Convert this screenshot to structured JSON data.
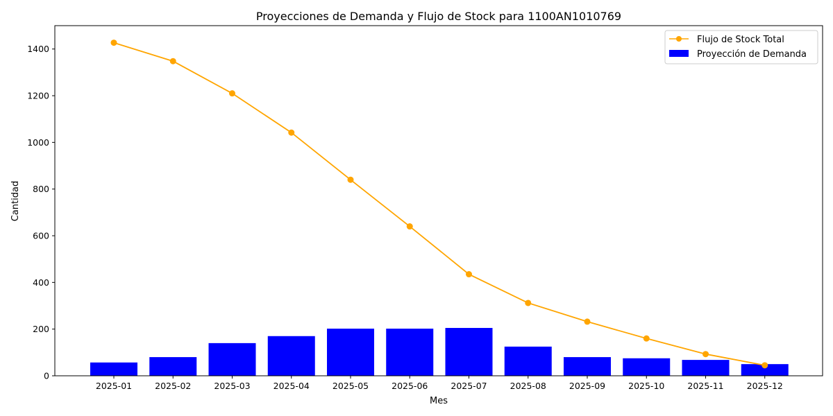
{
  "chart_data": {
    "type": "bar",
    "title": "Proyecciones de Demanda y Flujo de Stock para 1100AN1010769",
    "xlabel": "Mes",
    "ylabel": "Cantidad",
    "categories": [
      "2025-01",
      "2025-02",
      "2025-03",
      "2025-04",
      "2025-05",
      "2025-06",
      "2025-07",
      "2025-08",
      "2025-09",
      "2025-10",
      "2025-11",
      "2025-12"
    ],
    "ylim": [
      0,
      1500
    ],
    "yticks": [
      0,
      200,
      400,
      600,
      800,
      1000,
      1200,
      1400
    ],
    "grid": false,
    "legend_position": "top-right",
    "series": [
      {
        "name": "Flujo de Stock Total",
        "kind": "line",
        "color": "#FFA500",
        "marker": "circle",
        "values": [
          1427,
          1348,
          1210,
          1042,
          840,
          640,
          435,
          312,
          232,
          160,
          93,
          45
        ]
      },
      {
        "name": "Proyección de Demanda",
        "kind": "bar",
        "color": "#0000FF",
        "values": [
          57,
          80,
          140,
          170,
          202,
          202,
          205,
          125,
          80,
          75,
          68,
          50
        ]
      }
    ]
  }
}
